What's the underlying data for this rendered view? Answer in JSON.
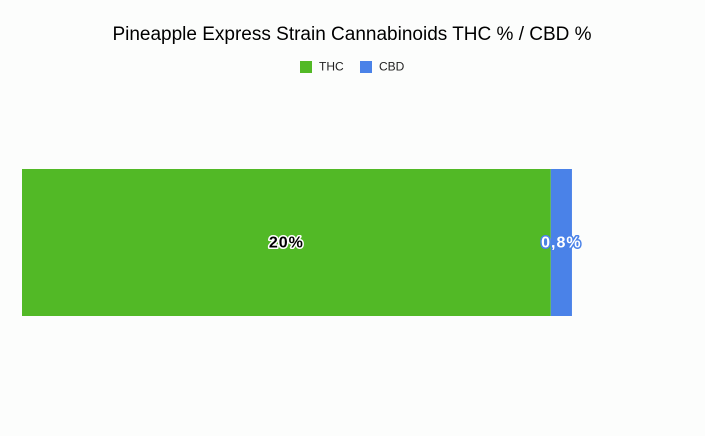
{
  "chart_data": {
    "type": "stacked-bar",
    "orientation": "horizontal",
    "title": "Pineapple Express Strain Cannabinoids THC % / CBD %",
    "categories": [
      null
    ],
    "series": [
      {
        "name": "THC",
        "color": "#52b926",
        "values": [
          20
        ],
        "value_labels": [
          "20%"
        ]
      },
      {
        "name": "CBD",
        "color": "#4a82e8",
        "values": [
          0.8
        ],
        "value_labels": [
          "0,8%"
        ]
      }
    ],
    "xlim": [
      0,
      25
    ]
  }
}
